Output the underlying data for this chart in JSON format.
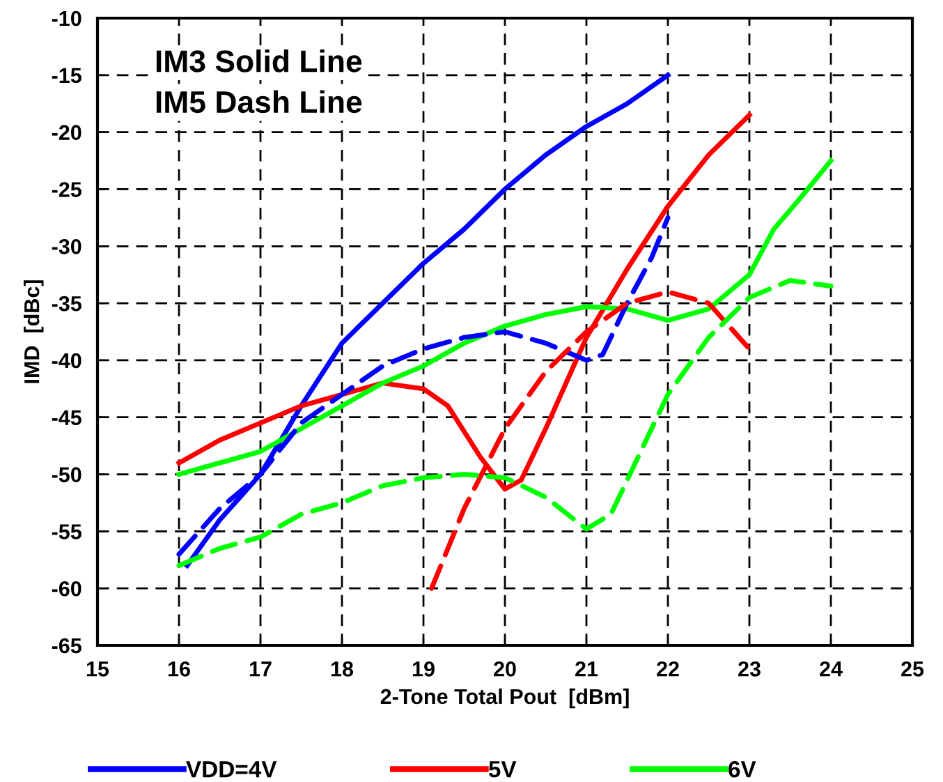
{
  "chart_data": {
    "type": "line",
    "xlabel": "2-Tone Total Pout  [dBm]",
    "ylabel": "IMD  [dBc]",
    "annotations": [
      "IM3 Solid Line",
      "IM5 Dash Line"
    ],
    "xlim": [
      15,
      25
    ],
    "xticks": [
      15,
      16,
      17,
      18,
      19,
      20,
      21,
      22,
      23,
      24,
      25
    ],
    "ylim": [
      -65,
      -10
    ],
    "yticks": [
      -65,
      -60,
      -55,
      -50,
      -45,
      -40,
      -35,
      -30,
      -25,
      -20,
      -15,
      -10
    ],
    "grid": true,
    "legend": "bottom",
    "marker": "none",
    "series": [
      {
        "name": "VDD=4V",
        "color": "#0000ff",
        "line_style": "solid",
        "x": [
          16.1,
          16.5,
          17,
          17.5,
          18,
          18.5,
          19,
          19.5,
          20,
          20.5,
          21,
          21.5,
          22
        ],
        "values": [
          -58,
          -54,
          -50,
          -44,
          -38.5,
          -35,
          -31.5,
          -28.5,
          -25,
          -22,
          -19.5,
          -17.5,
          -15
        ]
      },
      {
        "name": "5V",
        "color": "#ff0000",
        "line_style": "solid",
        "x": [
          16,
          16.5,
          17,
          17.5,
          18,
          18.5,
          19,
          19.3,
          19.7,
          20,
          20.2,
          20.5,
          21,
          21.5,
          22,
          22.5,
          23
        ],
        "values": [
          -49,
          -47,
          -45.5,
          -44,
          -43,
          -42,
          -42.5,
          -44,
          -48.5,
          -51.3,
          -50.5,
          -46,
          -38,
          -32,
          -26.5,
          -22,
          -18.5
        ]
      },
      {
        "name": "6V",
        "color": "#00ff00",
        "line_style": "solid",
        "x": [
          16,
          16.5,
          17,
          17.5,
          18,
          18.5,
          19,
          19.5,
          20,
          20.5,
          21,
          21.5,
          22,
          22.5,
          23,
          23.3,
          23.6,
          24
        ],
        "values": [
          -50,
          -49,
          -48,
          -46,
          -44,
          -42,
          -40.5,
          -38.5,
          -37,
          -36,
          -35.3,
          -35.5,
          -36.5,
          -35.5,
          -32.5,
          -28.5,
          -26,
          -22.5
        ]
      },
      {
        "color": "#0000ff",
        "line_style": "dashed",
        "x": [
          16,
          16.5,
          17,
          17.5,
          18,
          18.5,
          19,
          19.5,
          20,
          20.5,
          21,
          21.2,
          21.5,
          21.8,
          22
        ],
        "values": [
          -57,
          -53,
          -50,
          -45.5,
          -43,
          -40.5,
          -39,
          -38,
          -37.5,
          -38.5,
          -40,
          -39.5,
          -35,
          -31,
          -27.5
        ]
      },
      {
        "color": "#ff0000",
        "line_style": "dashed",
        "x": [
          19.1,
          19.5,
          20,
          20.5,
          21,
          21.5,
          22,
          22.5,
          23
        ],
        "values": [
          -60,
          -53,
          -46,
          -41,
          -37.5,
          -35,
          -34,
          -35,
          -39
        ]
      },
      {
        "color": "#00ff00",
        "line_style": "dashed",
        "x": [
          16,
          16.5,
          17,
          17.5,
          18,
          18.5,
          19,
          19.5,
          20,
          20.5,
          21,
          21.3,
          21.6,
          22,
          22.5,
          23,
          23.5,
          24
        ],
        "values": [
          -58,
          -56.5,
          -55.5,
          -53.5,
          -52.5,
          -51,
          -50.3,
          -50,
          -50.3,
          -52,
          -54.8,
          -53.5,
          -49,
          -43,
          -38,
          -34.5,
          -33,
          -33.5
        ]
      }
    ]
  }
}
